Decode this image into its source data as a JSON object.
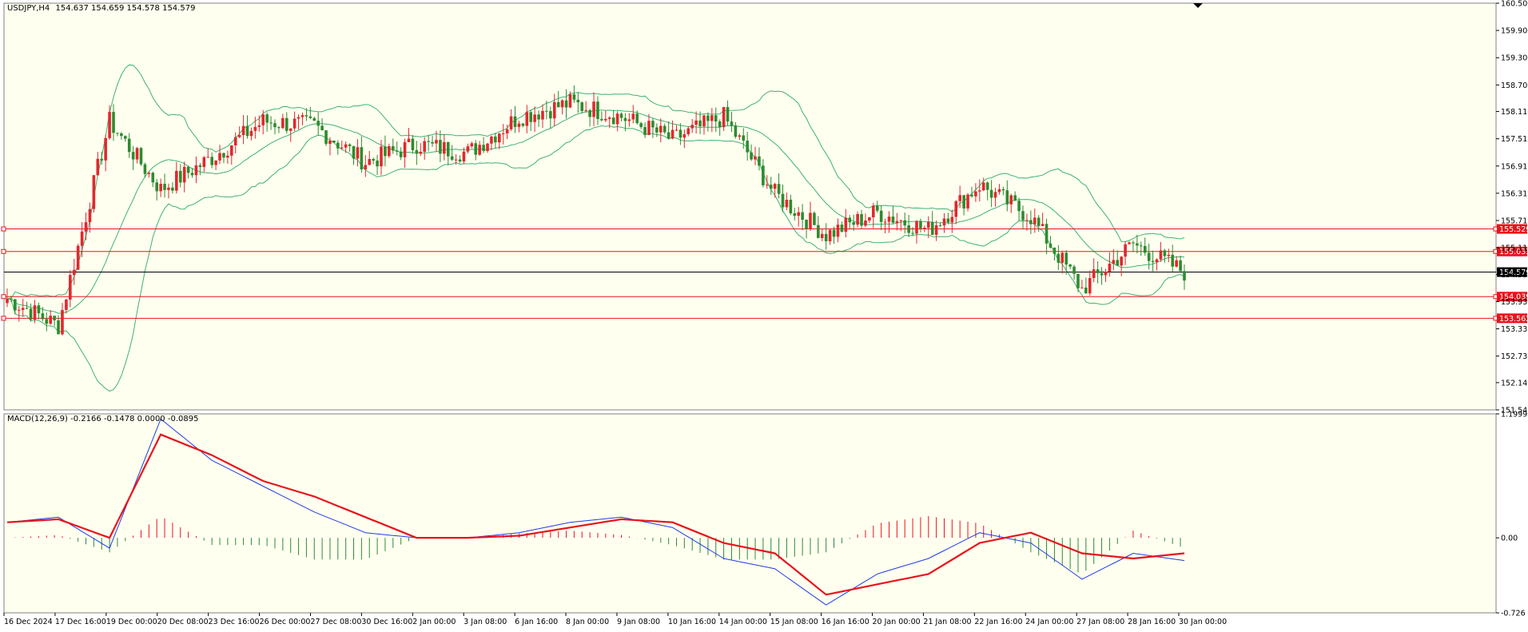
{
  "header": {
    "symbol": "USDJPY,H4",
    "ohlc": "154.637 154.659 154.578 154.579"
  },
  "macd_header": {
    "title": "MACD(12,26,9) -0.2166 -0.1478 0.0000 -0.0895"
  },
  "colors": {
    "background": "#FFFFF0",
    "bull_candle": "#E0282E",
    "bear_candle": "#2E8B2E",
    "bollinger": "#3CB371",
    "level_line": "#E8141B",
    "macd_main": "#1E3CE6",
    "macd_signal": "#E8141B",
    "hist_positive": "#E8141B",
    "hist_negative": "#2E8B2E"
  },
  "chart_data": [
    {
      "type": "candlestick",
      "title": "USDJPY,H4",
      "timeframe": "H4",
      "ohlc_last": {
        "open": 154.637,
        "high": 154.659,
        "low": 154.578,
        "close": 154.579
      },
      "ylim": [
        151.545,
        160.5
      ],
      "y_ticks": [
        "160.500",
        "159.900",
        "159.300",
        "158.700",
        "158.115",
        "157.515",
        "156.915",
        "156.315",
        "155.715",
        "155.115",
        "154.530",
        "153.930",
        "153.330",
        "152.730",
        "152.145",
        "151.545"
      ],
      "x_tick_labels": [
        "16 Dec 2024",
        "17 Dec 16:00",
        "19 Dec 00:00",
        "20 Dec 08:00",
        "23 Dec 16:00",
        "26 Dec 00:00",
        "27 Dec 08:00",
        "30 Dec 16:00",
        "2 Jan 00:00",
        "3 Jan 08:00",
        "6 Jan 16:00",
        "8 Jan 00:00",
        "9 Jan 08:00",
        "10 Jan 16:00",
        "14 Jan 00:00",
        "15 Jan 08:00",
        "16 Jan 16:00",
        "20 Jan 00:00",
        "21 Jan 08:00",
        "22 Jan 16:00",
        "24 Jan 00:00",
        "27 Jan 08:00",
        "28 Jan 16:00",
        "30 Jan 00:00"
      ],
      "price_levels": [
        155.529,
        155.033,
        154.039,
        153.562
      ],
      "current_price": 154.579,
      "close_path": [
        {
          "x": "16 Dec 2024",
          "close": 154.0
        },
        {
          "x": "17 Dec 16:00",
          "close": 153.4
        },
        {
          "x": "19 Dec 00:00",
          "close": 157.9
        },
        {
          "x": "20 Dec 08:00",
          "close": 156.4
        },
        {
          "x": "23 Dec 16:00",
          "close": 157.1
        },
        {
          "x": "26 Dec 00:00",
          "close": 157.9
        },
        {
          "x": "27 Dec 08:00",
          "close": 157.8
        },
        {
          "x": "30 Dec 16:00",
          "close": 157.0
        },
        {
          "x": "2 Jan 00:00",
          "close": 157.4
        },
        {
          "x": "3 Jan 08:00",
          "close": 157.2
        },
        {
          "x": "6 Jan 16:00",
          "close": 158.0
        },
        {
          "x": "8 Jan 00:00",
          "close": 158.3
        },
        {
          "x": "9 Jan 08:00",
          "close": 158.0
        },
        {
          "x": "10 Jan 16:00",
          "close": 157.5
        },
        {
          "x": "14 Jan 00:00",
          "close": 158.0
        },
        {
          "x": "15 Jan 08:00",
          "close": 156.3
        },
        {
          "x": "16 Jan 16:00",
          "close": 155.4
        },
        {
          "x": "20 Jan 00:00",
          "close": 155.9
        },
        {
          "x": "21 Jan 08:00",
          "close": 155.5
        },
        {
          "x": "22 Jan 16:00",
          "close": 156.5
        },
        {
          "x": "24 Jan 00:00",
          "close": 155.8
        },
        {
          "x": "27 Jan 08:00",
          "close": 154.2
        },
        {
          "x": "28 Jan 16:00",
          "close": 155.2
        },
        {
          "x": "30 Jan 00:00",
          "close": 154.579
        }
      ],
      "indicators": [
        "Bollinger Bands (upper, middle, lower)"
      ]
    },
    {
      "type": "line",
      "title": "MACD(12,26,9) -0.2166 -0.1478 0.0000 -0.0895",
      "ylim": [
        -0.726,
        1.1999
      ],
      "y_ticks": [
        "1.1999",
        "0.00",
        "-0.726"
      ],
      "series": [
        {
          "name": "MACD",
          "values": [
            0.15,
            0.2,
            -0.1,
            1.15,
            0.75,
            0.5,
            0.25,
            0.05,
            0.0,
            0.0,
            0.05,
            0.15,
            0.2,
            0.1,
            -0.2,
            -0.3,
            -0.65,
            -0.35,
            -0.2,
            0.05,
            -0.05,
            -0.4,
            -0.15,
            -0.22
          ]
        },
        {
          "name": "Signal",
          "values": [
            0.15,
            0.18,
            0.0,
            1.0,
            0.8,
            0.55,
            0.4,
            0.2,
            0.0,
            0.0,
            0.02,
            0.1,
            0.18,
            0.15,
            -0.05,
            -0.15,
            -0.55,
            -0.45,
            -0.35,
            -0.05,
            0.05,
            -0.15,
            -0.2,
            -0.15
          ]
        }
      ]
    }
  ]
}
